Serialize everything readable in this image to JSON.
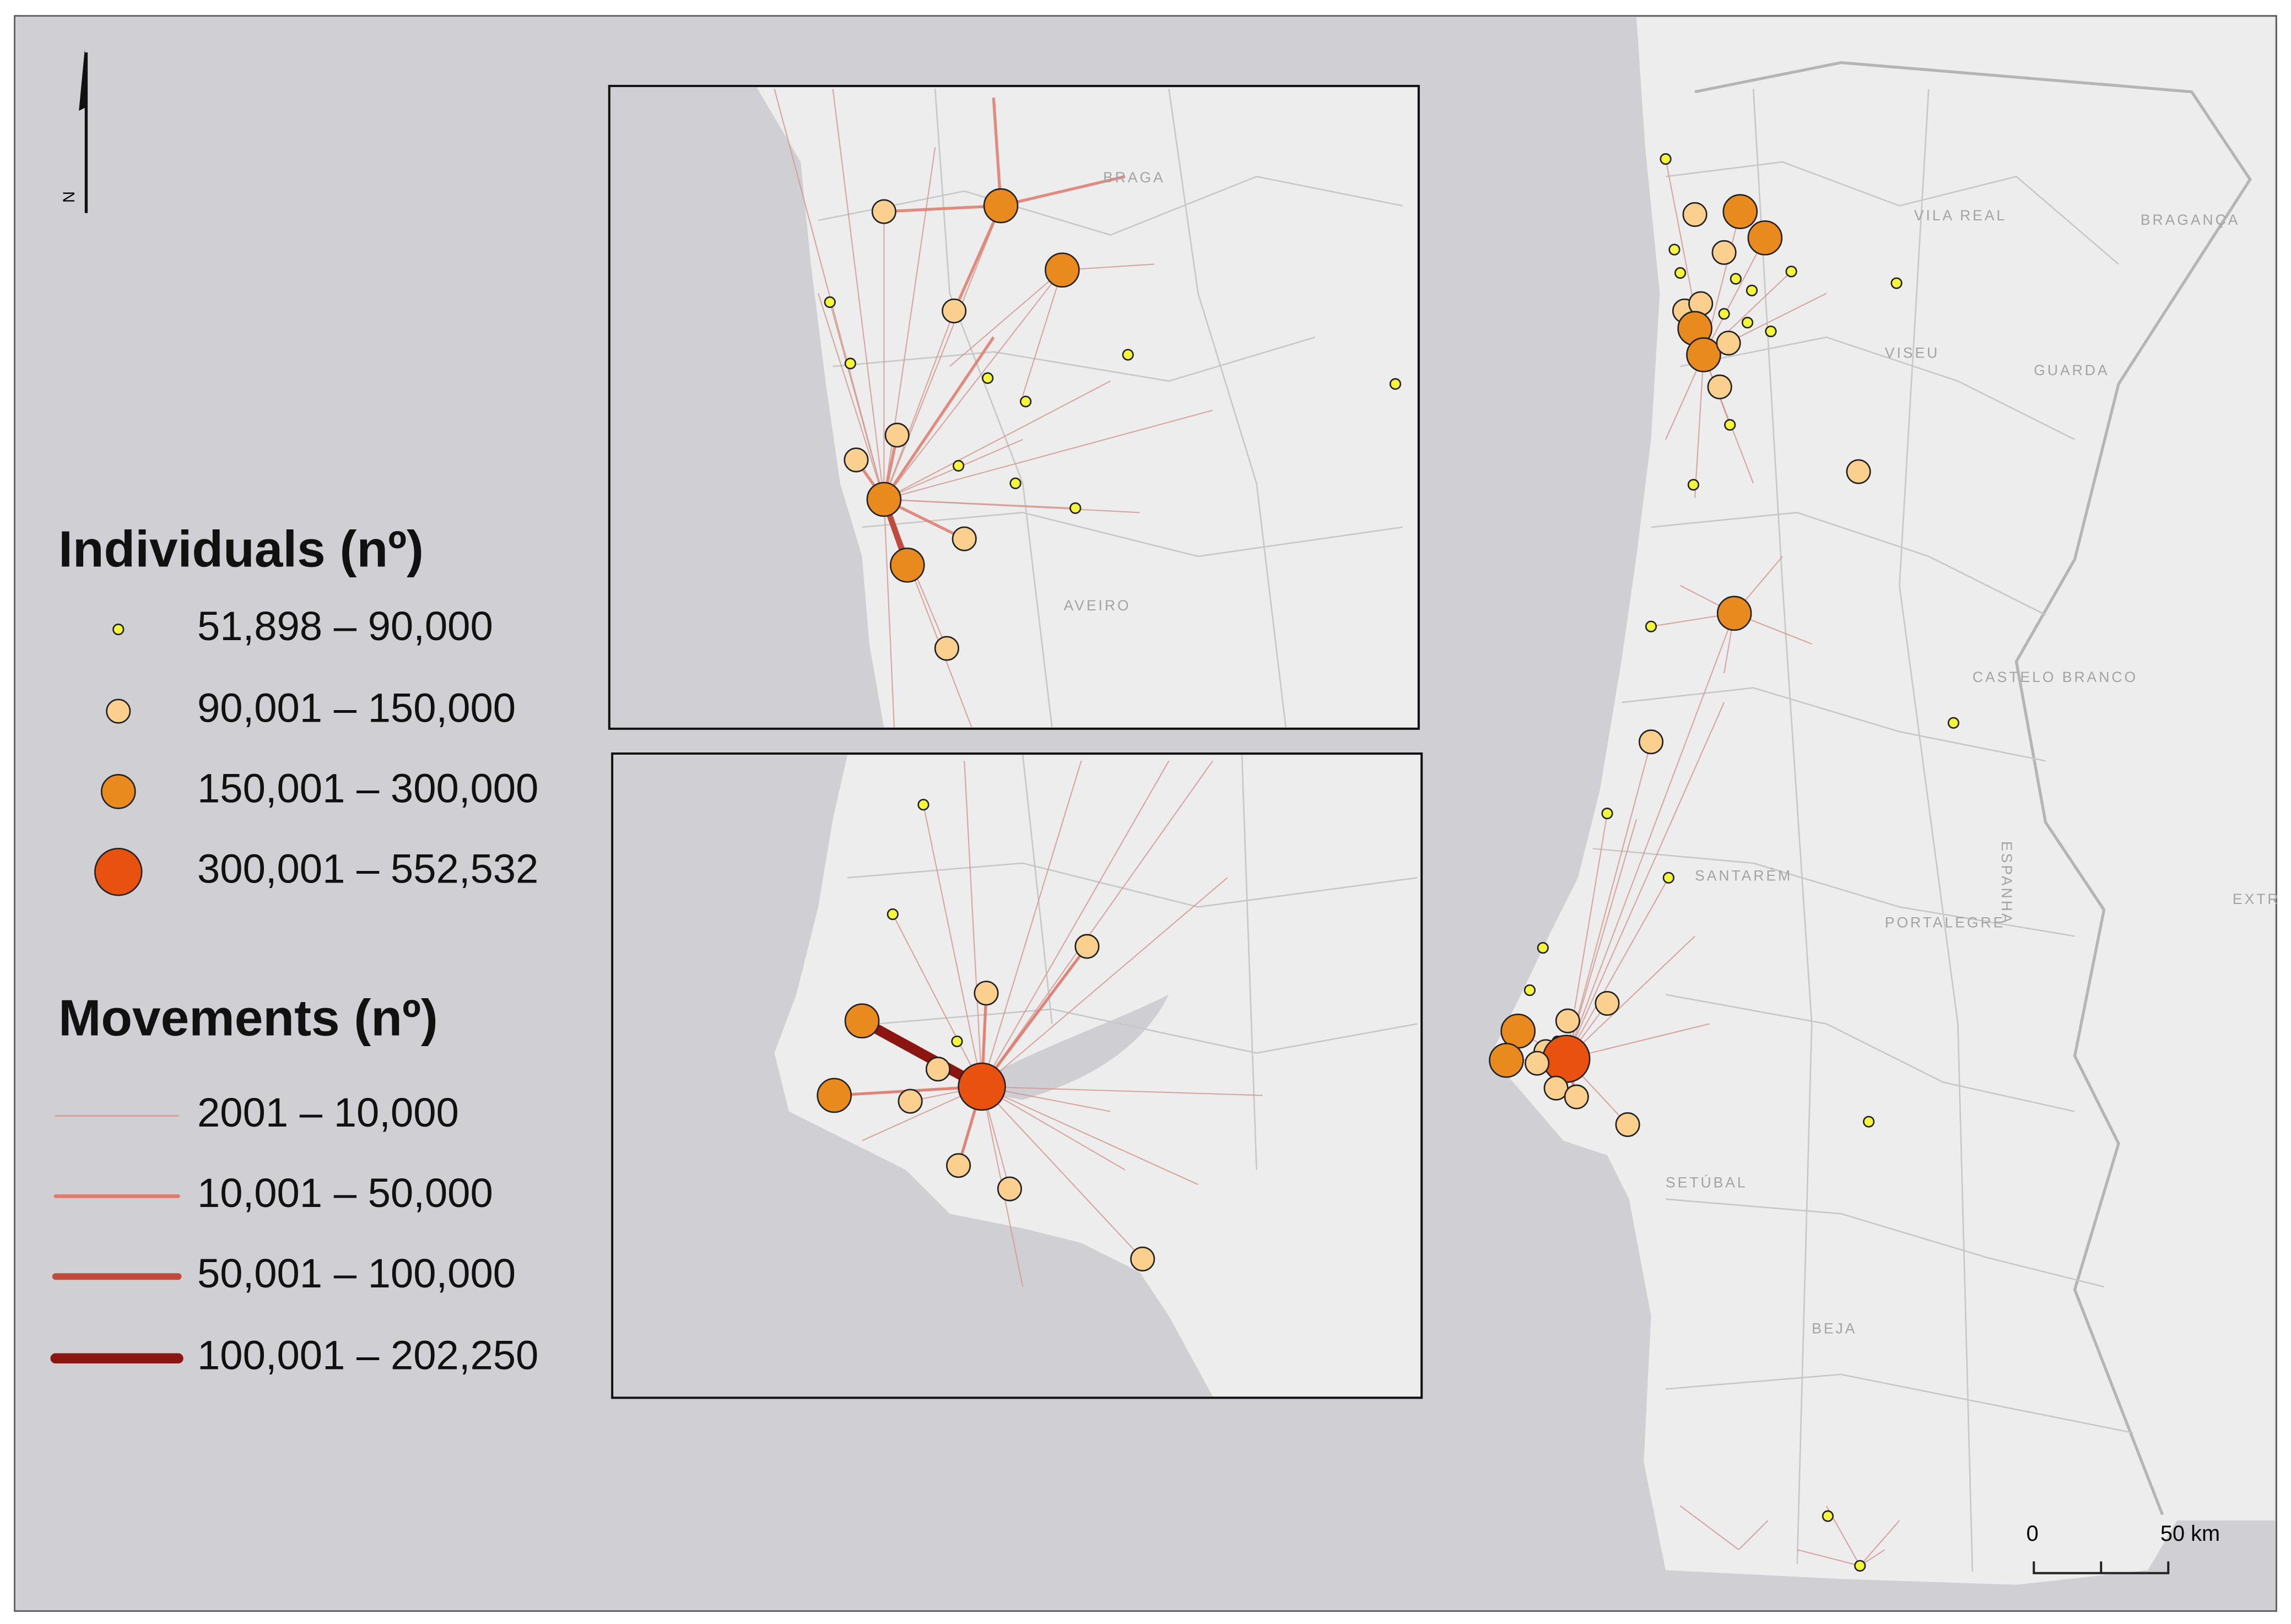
{
  "legend": {
    "individuals": {
      "title": "Individuals (nº)",
      "classes": [
        {
          "label": "51,898 – 90,000",
          "color": "#f5f53c"
        },
        {
          "label": "90,001 – 150,000",
          "color": "#fbd08e"
        },
        {
          "label": "150,001 – 300,000",
          "color": "#e98a1f"
        },
        {
          "label": "300,001 – 552,532",
          "color": "#e9510e"
        }
      ]
    },
    "movements": {
      "title": "Movements (nº)",
      "classes": [
        {
          "label": "2001 – 10,000",
          "color": "#d49a92"
        },
        {
          "label": "10,001 – 50,000",
          "color": "#e07a6c"
        },
        {
          "label": "50,001 – 100,000",
          "color": "#c04a3c"
        },
        {
          "label": "100,001 – 202,250",
          "color": "#8b1510"
        }
      ]
    }
  },
  "north_arrow": "N",
  "scale_bar": {
    "start": "0",
    "end": "50 km"
  },
  "place_labels": [
    "BRAGA",
    "AVEIRO",
    "VILA REAL",
    "BRAGANÇA",
    "VISEU",
    "GUARDA",
    "CASTELO BRANCO",
    "SANTARÉM",
    "PORTALEGRE",
    "SETÚBAL",
    "BEJA",
    "EXTR",
    "ESPANHA"
  ]
}
